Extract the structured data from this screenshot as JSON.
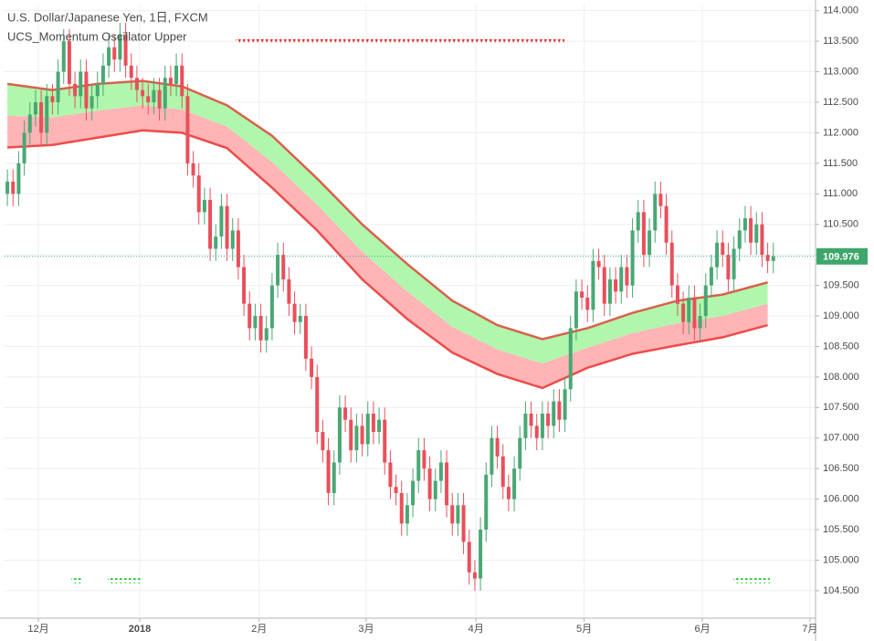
{
  "chart_data": {
    "type": "candlestick",
    "title": "U.S. Dollar/Japanese Yen, 1日, FXCM",
    "subtitle": "UCS_Momentum Oscillator Upper",
    "xlim": [
      -0.5,
      143.5
    ],
    "xticks": [
      {
        "value": 5.5,
        "label": "12月"
      },
      {
        "value": 23.5,
        "label": "2018"
      },
      {
        "value": 44.7,
        "label": "2月"
      },
      {
        "value": 63.7,
        "label": "3月"
      },
      {
        "value": 83.2,
        "label": "4月"
      },
      {
        "value": 102.4,
        "label": "5月"
      },
      {
        "value": 123.4,
        "label": "6月"
      },
      {
        "value": 142.5,
        "label": "7月"
      }
    ],
    "ylim": [
      104.05,
      114.1
    ],
    "yticks": [
      {
        "value": 104.5,
        "label": "104.500"
      },
      {
        "value": 105,
        "label": "105.000"
      },
      {
        "value": 105.5,
        "label": "105.500"
      },
      {
        "value": 106,
        "label": "106.000"
      },
      {
        "value": 106.5,
        "label": "106.500"
      },
      {
        "value": 107,
        "label": "107.000"
      },
      {
        "value": 107.5,
        "label": "107.500"
      },
      {
        "value": 108,
        "label": "108.000"
      },
      {
        "value": 108.5,
        "label": "108.500"
      },
      {
        "value": 109,
        "label": "109.000"
      },
      {
        "value": 109.5,
        "label": "109.500"
      },
      {
        "value": 110,
        "label": "110.000"
      },
      {
        "value": 110.5,
        "label": "110.500"
      },
      {
        "value": 111,
        "label": "111.000"
      },
      {
        "value": 111.5,
        "label": "111.500"
      },
      {
        "value": 112,
        "label": "112.000"
      },
      {
        "value": 112.5,
        "label": "112.500"
      },
      {
        "value": 113,
        "label": "113.000"
      },
      {
        "value": 113.5,
        "label": "113.500"
      },
      {
        "value": 114,
        "label": "114.000"
      }
    ],
    "grid": true,
    "up_color": "#4aa774",
    "down_color": "#e8505b",
    "last_price": 109.976,
    "last_price_color": "#3ea66b",
    "open": [
      111.0,
      111.2,
      111.0,
      111.5,
      112.0,
      112.3,
      112.5,
      112.0,
      112.6,
      112.5,
      113.0,
      113.5,
      112.8,
      112.6,
      113.0,
      112.4,
      112.6,
      112.8,
      113.1,
      113.4,
      113.2,
      113.6,
      113.1,
      112.9,
      112.7,
      112.6,
      112.5,
      112.7,
      112.4,
      112.9,
      112.8,
      113.1,
      112.6,
      111.5,
      111.3,
      110.7,
      110.9,
      110.1,
      110.3,
      110.8,
      110.1,
      110.4,
      109.8,
      109.2,
      108.8,
      109.0,
      108.6,
      108.8,
      109.5,
      110.0,
      109.6,
      109.2,
      108.9,
      109.0,
      108.3,
      108.0,
      107.1,
      106.8,
      106.1,
      106.6,
      107.5,
      107.3,
      106.8,
      107.2,
      106.9,
      107.4,
      107.1,
      107.3,
      106.6,
      106.2,
      106.1,
      105.6,
      105.9,
      106.3,
      106.8,
      106.5,
      106.0,
      106.3,
      106.6,
      105.9,
      105.6,
      105.9,
      105.3,
      104.8,
      104.7,
      105.5,
      106.4,
      107.0,
      106.7,
      106.2,
      106.0,
      106.5,
      107.0,
      107.4,
      107.2,
      107.0,
      107.4,
      107.2,
      107.6,
      107.3,
      107.8,
      108.8,
      109.4,
      109.3,
      109.1,
      109.9,
      109.8,
      109.2,
      109.6,
      109.4,
      109.8,
      109.5,
      110.4,
      110.7,
      110.0,
      110.4,
      111.0,
      110.8,
      110.2,
      109.5,
      109.2,
      108.9,
      109.3,
      108.8,
      109.0,
      109.5,
      109.8,
      110.2,
      110.0,
      109.6,
      110.1,
      110.4,
      110.6,
      110.2,
      110.5,
      110.0,
      109.9
    ],
    "high": [
      111.4,
      111.4,
      111.7,
      112.2,
      112.5,
      112.7,
      112.7,
      112.8,
      112.8,
      113.2,
      113.7,
      113.7,
      113.0,
      113.2,
      113.2,
      112.8,
      113.0,
      113.3,
      113.6,
      113.6,
      113.8,
      113.8,
      113.3,
      113.1,
      112.9,
      112.8,
      112.9,
      112.9,
      113.1,
      113.1,
      113.3,
      113.3,
      112.8,
      111.7,
      111.5,
      111.1,
      111.1,
      110.5,
      111.0,
      111.0,
      110.6,
      110.6,
      110.0,
      109.4,
      109.2,
      109.2,
      109.0,
      109.7,
      110.2,
      110.2,
      109.8,
      109.4,
      109.2,
      109.2,
      108.5,
      108.2,
      107.3,
      107.0,
      106.8,
      107.7,
      107.7,
      107.5,
      107.4,
      107.4,
      107.6,
      107.6,
      107.5,
      107.5,
      106.8,
      106.4,
      106.3,
      106.1,
      106.5,
      107.0,
      107.0,
      106.7,
      106.5,
      106.8,
      106.8,
      106.1,
      106.1,
      106.1,
      105.5,
      105.0,
      105.7,
      106.6,
      107.2,
      107.2,
      106.9,
      106.4,
      106.7,
      107.2,
      107.6,
      107.6,
      107.4,
      107.6,
      107.6,
      107.8,
      107.8,
      108.0,
      109.0,
      109.6,
      109.6,
      109.5,
      110.1,
      110.1,
      110.0,
      109.8,
      109.8,
      110.0,
      110.0,
      110.6,
      110.9,
      110.9,
      110.6,
      111.2,
      111.2,
      111.0,
      110.4,
      109.7,
      109.4,
      109.5,
      109.5,
      109.2,
      109.7,
      110.0,
      110.4,
      110.4,
      110.2,
      110.3,
      110.6,
      110.8,
      110.8,
      110.7,
      110.7,
      110.2,
      110.2
    ],
    "low": [
      110.8,
      110.8,
      110.8,
      111.3,
      111.8,
      112.1,
      111.8,
      111.8,
      112.3,
      112.3,
      112.8,
      112.6,
      112.4,
      112.4,
      112.2,
      112.2,
      112.4,
      112.6,
      112.9,
      113.0,
      113.0,
      112.9,
      112.7,
      112.5,
      112.4,
      112.3,
      112.3,
      112.2,
      112.2,
      112.6,
      112.6,
      112.4,
      111.3,
      111.1,
      110.5,
      110.5,
      109.9,
      109.9,
      110.1,
      109.9,
      109.9,
      109.6,
      109.0,
      108.6,
      108.6,
      108.4,
      108.4,
      108.6,
      109.3,
      109.4,
      109.0,
      108.7,
      108.7,
      108.1,
      107.8,
      106.9,
      106.6,
      105.9,
      105.9,
      106.4,
      107.1,
      106.6,
      106.6,
      106.7,
      106.7,
      106.9,
      106.9,
      106.4,
      106.0,
      105.9,
      105.4,
      105.4,
      105.7,
      106.1,
      106.3,
      105.8,
      105.8,
      106.1,
      105.7,
      105.4,
      105.4,
      105.1,
      104.6,
      104.5,
      104.5,
      105.3,
      106.2,
      106.5,
      106.0,
      105.8,
      105.8,
      106.3,
      106.8,
      107.0,
      106.8,
      106.8,
      107.0,
      107.0,
      107.1,
      107.1,
      107.6,
      108.6,
      109.1,
      108.9,
      108.9,
      109.6,
      109.0,
      109.0,
      109.2,
      109.2,
      109.3,
      109.3,
      110.2,
      109.8,
      109.8,
      110.2,
      110.6,
      110.0,
      109.3,
      109.0,
      108.7,
      108.7,
      108.6,
      108.6,
      108.8,
      109.3,
      109.6,
      109.8,
      109.4,
      109.4,
      109.9,
      110.2,
      110.0,
      110.0,
      109.8,
      109.7,
      109.7
    ],
    "close": [
      111.2,
      111.0,
      111.5,
      112.0,
      112.3,
      112.5,
      112.0,
      112.6,
      112.5,
      113.0,
      113.5,
      112.8,
      112.6,
      113.0,
      112.4,
      112.6,
      112.8,
      113.1,
      113.4,
      113.2,
      113.6,
      113.1,
      112.9,
      112.7,
      112.6,
      112.5,
      112.7,
      112.4,
      112.9,
      112.8,
      113.1,
      112.6,
      111.5,
      111.3,
      110.7,
      110.9,
      110.1,
      110.3,
      110.8,
      110.1,
      110.4,
      109.8,
      109.2,
      108.8,
      109.0,
      108.6,
      108.8,
      109.5,
      110.0,
      109.6,
      109.2,
      108.9,
      109.0,
      108.3,
      108.0,
      107.1,
      106.8,
      106.1,
      106.6,
      107.5,
      107.3,
      106.8,
      107.2,
      106.9,
      107.4,
      107.1,
      107.3,
      106.6,
      106.2,
      106.1,
      105.6,
      105.9,
      106.3,
      106.8,
      106.5,
      106.0,
      106.3,
      106.6,
      105.9,
      105.6,
      105.9,
      105.3,
      104.8,
      104.7,
      105.5,
      106.4,
      107.0,
      106.7,
      106.2,
      106.0,
      106.5,
      107.0,
      107.4,
      107.2,
      107.0,
      107.4,
      107.2,
      107.6,
      107.3,
      107.8,
      108.8,
      109.4,
      109.3,
      109.1,
      109.9,
      109.8,
      109.2,
      109.6,
      109.4,
      109.8,
      109.5,
      110.4,
      110.7,
      110.0,
      110.4,
      111.0,
      110.8,
      110.2,
      109.5,
      109.2,
      108.9,
      109.3,
      108.8,
      109.0,
      109.5,
      109.8,
      110.2,
      110.0,
      109.6,
      110.1,
      110.4,
      110.6,
      110.2,
      110.5,
      110.0,
      109.9,
      109.976
    ],
    "band_x": [
      0,
      8,
      16,
      24,
      31,
      39,
      47,
      55,
      63,
      71,
      79,
      87,
      95,
      103,
      111,
      119,
      127,
      135
    ],
    "band_upper": [
      112.8,
      112.7,
      112.8,
      112.85,
      112.76,
      112.45,
      111.95,
      111.25,
      110.5,
      109.85,
      109.25,
      108.85,
      108.62,
      108.8,
      109.05,
      109.25,
      109.35,
      109.55
    ],
    "band_middle": [
      112.28,
      112.25,
      112.36,
      112.45,
      112.38,
      112.1,
      111.52,
      110.82,
      110.05,
      109.4,
      108.82,
      108.45,
      108.22,
      108.48,
      108.72,
      108.88,
      109.0,
      109.2
    ],
    "band_lower": [
      111.76,
      111.8,
      111.92,
      112.04,
      112.0,
      111.75,
      111.1,
      110.4,
      109.6,
      108.95,
      108.4,
      108.05,
      107.82,
      108.15,
      108.38,
      108.52,
      108.65,
      108.85
    ],
    "upper_color": "#d9614a",
    "lower_color": "#ef4b4b",
    "upper_fill": "#b0f7ad",
    "lower_fill": "#ffb5b5"
  }
}
